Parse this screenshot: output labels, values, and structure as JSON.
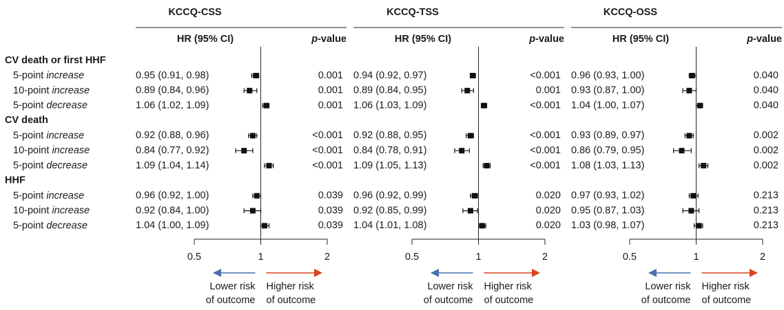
{
  "row_groups": [
    {
      "name": "CV death or first HHF",
      "rows": [
        "5-point increase",
        "10-point increase",
        "5-point decrease"
      ]
    },
    {
      "name": "CV death",
      "rows": [
        "5-point increase",
        "10-point increase",
        "5-point decrease"
      ]
    },
    {
      "name": "HHF",
      "rows": [
        "5-point increase",
        "10-point increase",
        "5-point decrease"
      ]
    }
  ],
  "annotations": {
    "lower": {
      "lines": [
        "Lower risk",
        "of outcome"
      ],
      "color": "#4a6fb0"
    },
    "higher": {
      "lines": [
        "Higher risk",
        "of outcome"
      ],
      "color": "#d9451f"
    }
  },
  "chart_data": [
    {
      "type": "forest",
      "title": "KCCQ-CSS",
      "columns": [
        "HR (95% CI)",
        "p-value"
      ],
      "values": [
        0.95,
        0.89,
        1.06,
        0.92,
        0.84,
        1.09,
        0.96,
        0.92,
        1.04
      ],
      "lower": [
        0.91,
        0.84,
        1.02,
        0.88,
        0.77,
        1.04,
        0.92,
        0.84,
        1.0
      ],
      "upper": [
        0.98,
        0.96,
        1.09,
        0.96,
        0.92,
        1.14,
        1.0,
        1.0,
        1.09
      ],
      "value_labels": [
        "0.95 (0.91, 0.98)",
        "0.89 (0.84, 0.96)",
        "1.06 (1.02, 1.09)",
        "0.92 (0.88, 0.96)",
        "0.84 (0.77, 0.92)",
        "1.09 (1.04, 1.14)",
        "0.96 (0.92, 1.00)",
        "0.92 (0.84, 1.00)",
        "1.04 (1.00, 1.09)"
      ],
      "p_values": [
        "0.001",
        "0.001",
        "0.001",
        "<0.001",
        "<0.001",
        "<0.001",
        "0.039",
        "0.039",
        "0.039"
      ],
      "xlim": [
        0.5,
        2
      ],
      "xticks": [
        0.5,
        1,
        2
      ],
      "log_x": true,
      "reference": 1,
      "color": "#111111"
    },
    {
      "type": "forest",
      "title": "KCCQ-TSS",
      "columns": [
        "HR (95% CI)",
        "p-value"
      ],
      "values": [
        0.94,
        0.89,
        1.06,
        0.92,
        0.84,
        1.09,
        0.96,
        0.92,
        1.04
      ],
      "lower": [
        0.92,
        0.84,
        1.03,
        0.88,
        0.78,
        1.05,
        0.92,
        0.85,
        1.01
      ],
      "upper": [
        0.97,
        0.95,
        1.09,
        0.95,
        0.91,
        1.13,
        0.99,
        0.99,
        1.08
      ],
      "value_labels": [
        "0.94 (0.92, 0.97)",
        "0.89 (0.84, 0.95)",
        "1.06 (1.03, 1.09)",
        "0.92 (0.88, 0.95)",
        "0.84 (0.78, 0.91)",
        "1.09 (1.05, 1.13)",
        "0.96 (0.92, 0.99)",
        "0.92 (0.85, 0.99)",
        "1.04 (1.01, 1.08)"
      ],
      "p_values": [
        "<0.001",
        "0.001",
        "<0.001",
        "<0.001",
        "<0.001",
        "<0.001",
        "0.020",
        "0.020",
        "0.020"
      ],
      "xlim": [
        0.5,
        2
      ],
      "xticks": [
        0.5,
        1,
        2
      ],
      "log_x": true,
      "reference": 1,
      "color": "#111111"
    },
    {
      "type": "forest",
      "title": "KCCQ-OSS",
      "columns": [
        "HR (95% CI)",
        "p-value"
      ],
      "values": [
        0.96,
        0.93,
        1.04,
        0.93,
        0.86,
        1.08,
        0.97,
        0.95,
        1.03
      ],
      "lower": [
        0.93,
        0.87,
        1.0,
        0.89,
        0.79,
        1.03,
        0.93,
        0.87,
        0.98
      ],
      "upper": [
        1.0,
        1.0,
        1.07,
        0.97,
        0.95,
        1.13,
        1.02,
        1.03,
        1.07
      ],
      "value_labels": [
        "0.96 (0.93, 1.00)",
        "0.93 (0.87, 1.00)",
        "1.04 (1.00, 1.07)",
        "0.93 (0.89, 0.97)",
        "0.86 (0.79, 0.95)",
        "1.08 (1.03, 1.13)",
        "0.97 (0.93, 1.02)",
        "0.95 (0.87, 1.03)",
        "1.03 (0.98, 1.07)"
      ],
      "p_values": [
        "0.040",
        "0.040",
        "0.040",
        "0.002",
        "0.002",
        "0.002",
        "0.213",
        "0.213",
        "0.213"
      ],
      "xlim": [
        0.5,
        2
      ],
      "xticks": [
        0.5,
        1,
        2
      ],
      "log_x": true,
      "reference": 1,
      "color": "#111111"
    }
  ]
}
